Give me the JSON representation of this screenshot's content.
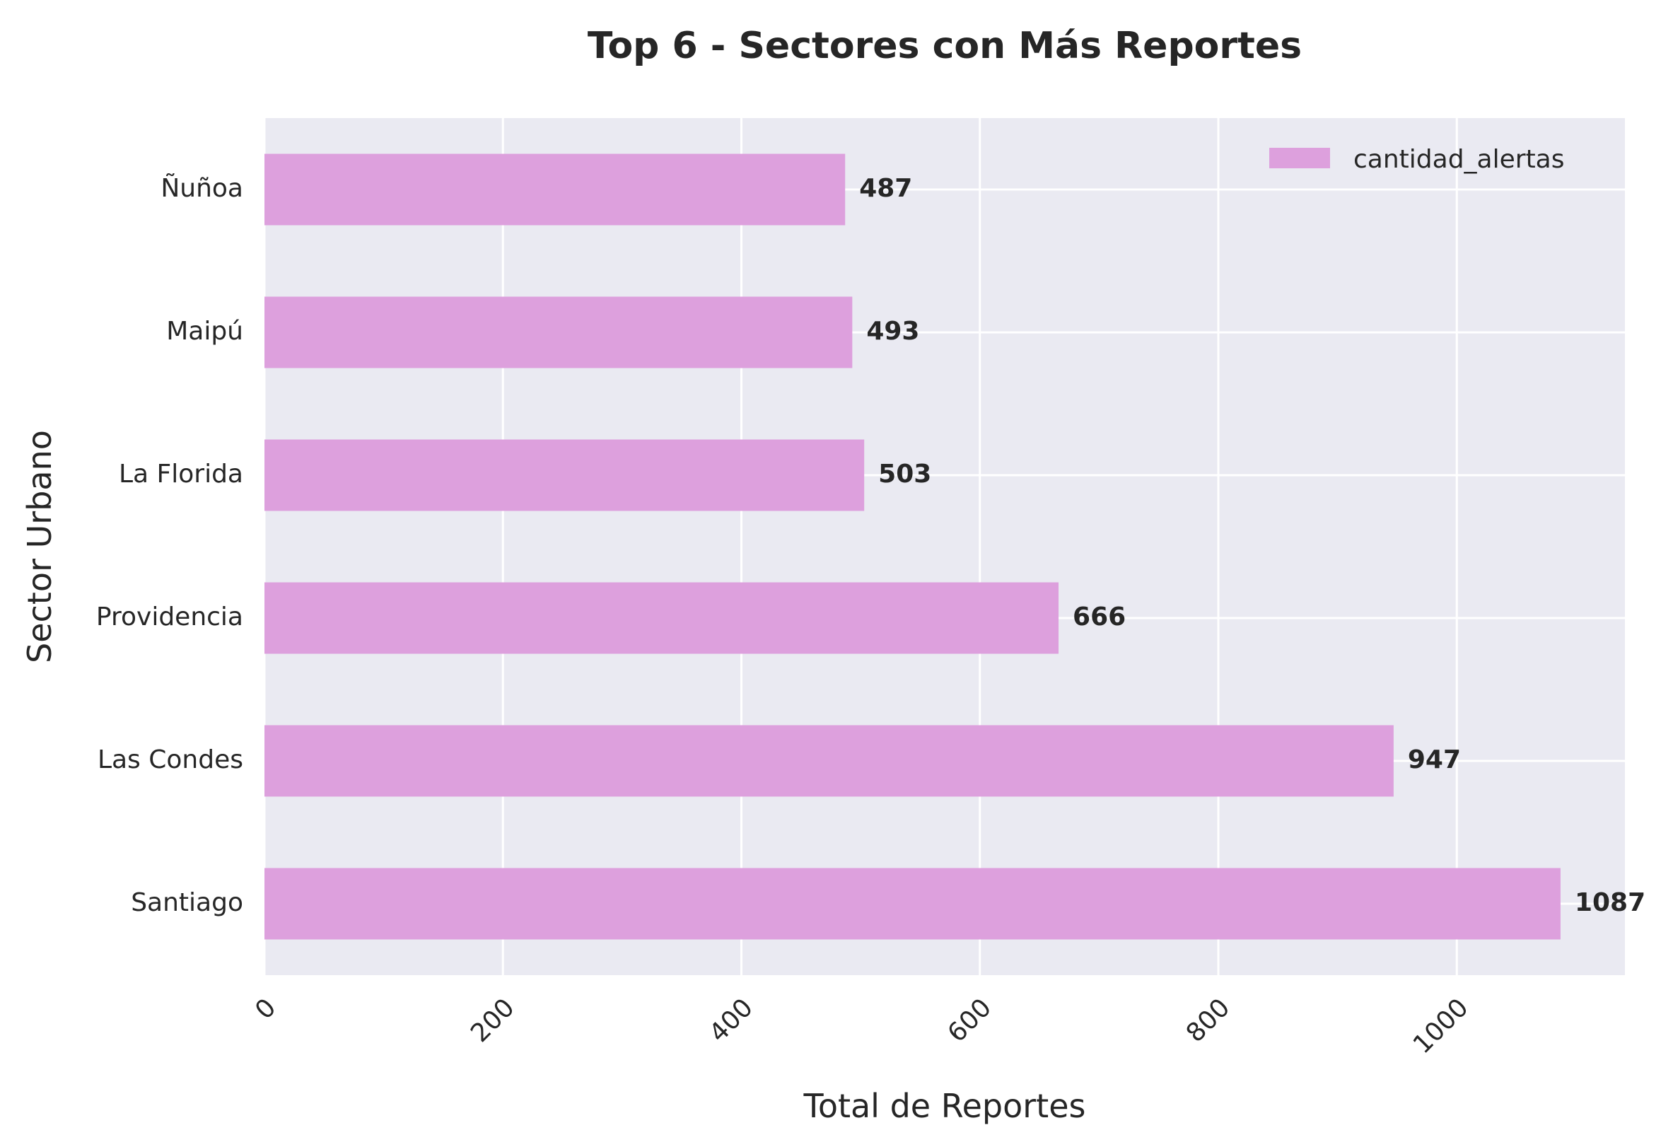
{
  "chart_data": {
    "type": "bar",
    "orientation": "horizontal",
    "title": "Top 6 - Sectores con Más Reportes",
    "xlabel": "Total de Reportes",
    "ylabel": "Sector Urbano",
    "categories": [
      "Santiago",
      "Las Condes",
      "Providencia",
      "La Florida",
      "Maipú",
      "Ñuñoa"
    ],
    "series": [
      {
        "name": "cantidad_alertas",
        "values": [
          1087,
          947,
          666,
          503,
          493,
          487
        ]
      }
    ],
    "value_labels": [
      "1087",
      "947",
      "666",
      "503",
      "493",
      "487"
    ],
    "xlim": [
      0,
      1141
    ],
    "x_ticks": [
      0,
      200,
      400,
      600,
      800,
      1000
    ],
    "x_tick_labels": [
      "0",
      "200",
      "400",
      "600",
      "800",
      "1000"
    ],
    "x_tick_rotation_deg": 45,
    "grid": true,
    "legend_position": "top-right",
    "colors": {
      "bar": "#dda0dd",
      "plot_background": "#eaeaf2",
      "grid": "#ffffff",
      "text": "#262626"
    }
  }
}
